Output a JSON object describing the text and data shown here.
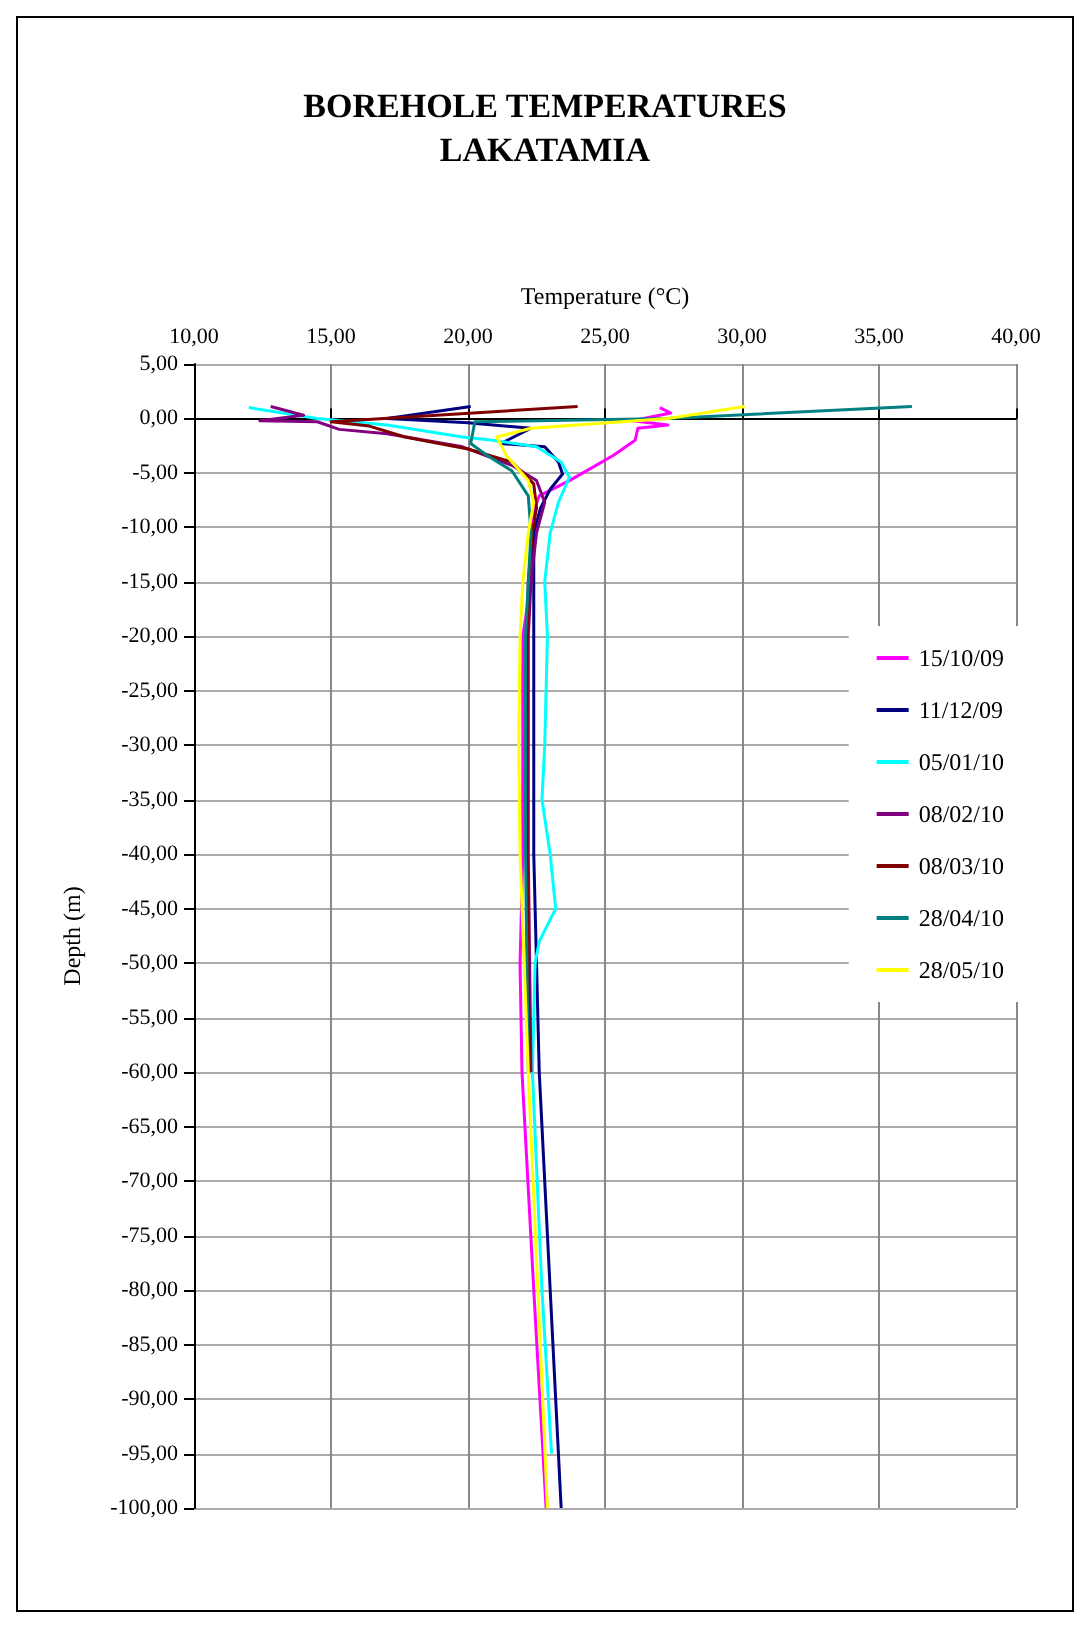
{
  "chart_data": {
    "type": "line",
    "title": "BOREHOLE TEMPERATURES\nLAKATAMIA",
    "xlabel": "Temperature (°C)",
    "ylabel": "Depth (m)",
    "xlim": [
      10,
      40
    ],
    "xticks": [
      {
        "value": 10,
        "label": "10,00"
      },
      {
        "value": 15,
        "label": "15,00"
      },
      {
        "value": 20,
        "label": "20,00"
      },
      {
        "value": 25,
        "label": "25,00"
      },
      {
        "value": 30,
        "label": "30,00"
      },
      {
        "value": 35,
        "label": "35,00"
      },
      {
        "value": 40,
        "label": "40,00"
      }
    ],
    "ylim": [
      -100,
      5
    ],
    "yticks": [
      {
        "value": 5,
        "label": "5,00"
      },
      {
        "value": 0,
        "label": "0,00"
      },
      {
        "value": -5,
        "label": "-5,00"
      },
      {
        "value": -10,
        "label": "-10,00"
      },
      {
        "value": -15,
        "label": "-15,00"
      },
      {
        "value": -20,
        "label": "-20,00"
      },
      {
        "value": -25,
        "label": "-25,00"
      },
      {
        "value": -30,
        "label": "-30,00"
      },
      {
        "value": -35,
        "label": "-35,00"
      },
      {
        "value": -40,
        "label": "-40,00"
      },
      {
        "value": -45,
        "label": "-45,00"
      },
      {
        "value": -50,
        "label": "-50,00"
      },
      {
        "value": -55,
        "label": "-55,00"
      },
      {
        "value": -60,
        "label": "-60,00"
      },
      {
        "value": -65,
        "label": "-65,00"
      },
      {
        "value": -70,
        "label": "-70,00"
      },
      {
        "value": -75,
        "label": "-75,00"
      },
      {
        "value": -80,
        "label": "-80,00"
      },
      {
        "value": -85,
        "label": "-85,00"
      },
      {
        "value": -90,
        "label": "-90,00"
      },
      {
        "value": -95,
        "label": "-95,00"
      },
      {
        "value": -100,
        "label": "-100,00"
      }
    ],
    "grid": true,
    "legend": "right",
    "marker": "none",
    "line_style": "solid",
    "series": [
      {
        "name": "15/10/09",
        "color": "#ff00ff",
        "x": [
          27.0,
          27.4,
          26.0,
          27.3,
          26.2,
          26.1,
          25.3,
          23.7,
          22.6,
          22.4,
          22.3,
          22.0,
          22.0,
          21.9,
          21.97,
          22.4,
          22.85
        ],
        "values": [
          1.0,
          0.5,
          -0.2,
          -0.6,
          -0.9,
          -2.0,
          -3.4,
          -5.7,
          -7.1,
          -8.5,
          -15,
          -20,
          -40,
          -50,
          -60,
          -80,
          -100
        ]
      },
      {
        "name": "11/12/09",
        "color": "#000080",
        "x": [
          20.1,
          17.05,
          20.0,
          22.3,
          21.2,
          22.8,
          23.3,
          23.45,
          23.0,
          22.65,
          22.4,
          22.4,
          22.4,
          22.6,
          23.0,
          23.4
        ],
        "values": [
          1.1,
          0,
          -0.4,
          -0.9,
          -2.3,
          -2.6,
          -4,
          -5.1,
          -6.5,
          -8.2,
          -10.5,
          -20,
          -40,
          -60,
          -80,
          -100
        ]
      },
      {
        "name": "05/01/10",
        "color": "#00ffff",
        "x": [
          12.0,
          14.5,
          17.05,
          19.8,
          20.9,
          22.5,
          23.4,
          23.7,
          23.3,
          23.0,
          22.8,
          22.9,
          22.8,
          22.7,
          23.0,
          23.2,
          22.6,
          22.45,
          22.35,
          22.7,
          23.05
        ],
        "values": [
          1.0,
          0,
          -0.6,
          -1.7,
          -2.0,
          -2.6,
          -4,
          -5.4,
          -7.7,
          -10.5,
          -15,
          -20,
          -30,
          -35,
          -40,
          -45,
          -48,
          -50,
          -60,
          -80,
          -95
        ]
      },
      {
        "name": "08/02/10",
        "color": "#800080",
        "x": [
          12.8,
          14.0,
          12.4,
          14.5,
          15.3,
          17.05,
          19.8,
          21.6,
          22.5,
          22.8,
          22.5,
          22.3,
          22.2,
          22.2,
          22.3
        ],
        "values": [
          1.1,
          0.3,
          -0.2,
          -0.3,
          -1.0,
          -1.4,
          -2.6,
          -4.3,
          -5.7,
          -7.7,
          -10.5,
          -15,
          -20,
          -40,
          -60
        ]
      },
      {
        "name": "08/03/10",
        "color": "#800000",
        "x": [
          24.0,
          15.0,
          16.4,
          17.7,
          20.0,
          21.6,
          22.4,
          22.5,
          22.35,
          22.2,
          22.15,
          22.15,
          22.25
        ],
        "values": [
          1.1,
          -0.3,
          -0.7,
          -1.7,
          -2.8,
          -4.0,
          -6.0,
          -8.2,
          -10.5,
          -15,
          -20,
          -40,
          -60
        ]
      },
      {
        "name": "28/04/10",
        "color": "#008080",
        "x": [
          36.2,
          27.3,
          20.25,
          20.1,
          20.7,
          21.6,
          22.2,
          22.3,
          22.2,
          22.1,
          22.1,
          22.2
        ],
        "values": [
          1.1,
          0,
          -0.3,
          -2.3,
          -3.4,
          -4.8,
          -7.1,
          -10.5,
          -15,
          -20,
          -40,
          -60
        ]
      },
      {
        "name": "28/05/10",
        "color": "#ffff00",
        "x": [
          30.1,
          27.3,
          22.3,
          21.05,
          21.4,
          22.2,
          22.4,
          22.2,
          22.0,
          21.9,
          21.85,
          21.9,
          22.2,
          22.55,
          22.9
        ],
        "values": [
          1.1,
          0,
          -0.9,
          -1.7,
          -3.4,
          -5.7,
          -7.7,
          -10.5,
          -15,
          -20,
          -30,
          -40,
          -60,
          -80,
          -100
        ]
      }
    ]
  }
}
